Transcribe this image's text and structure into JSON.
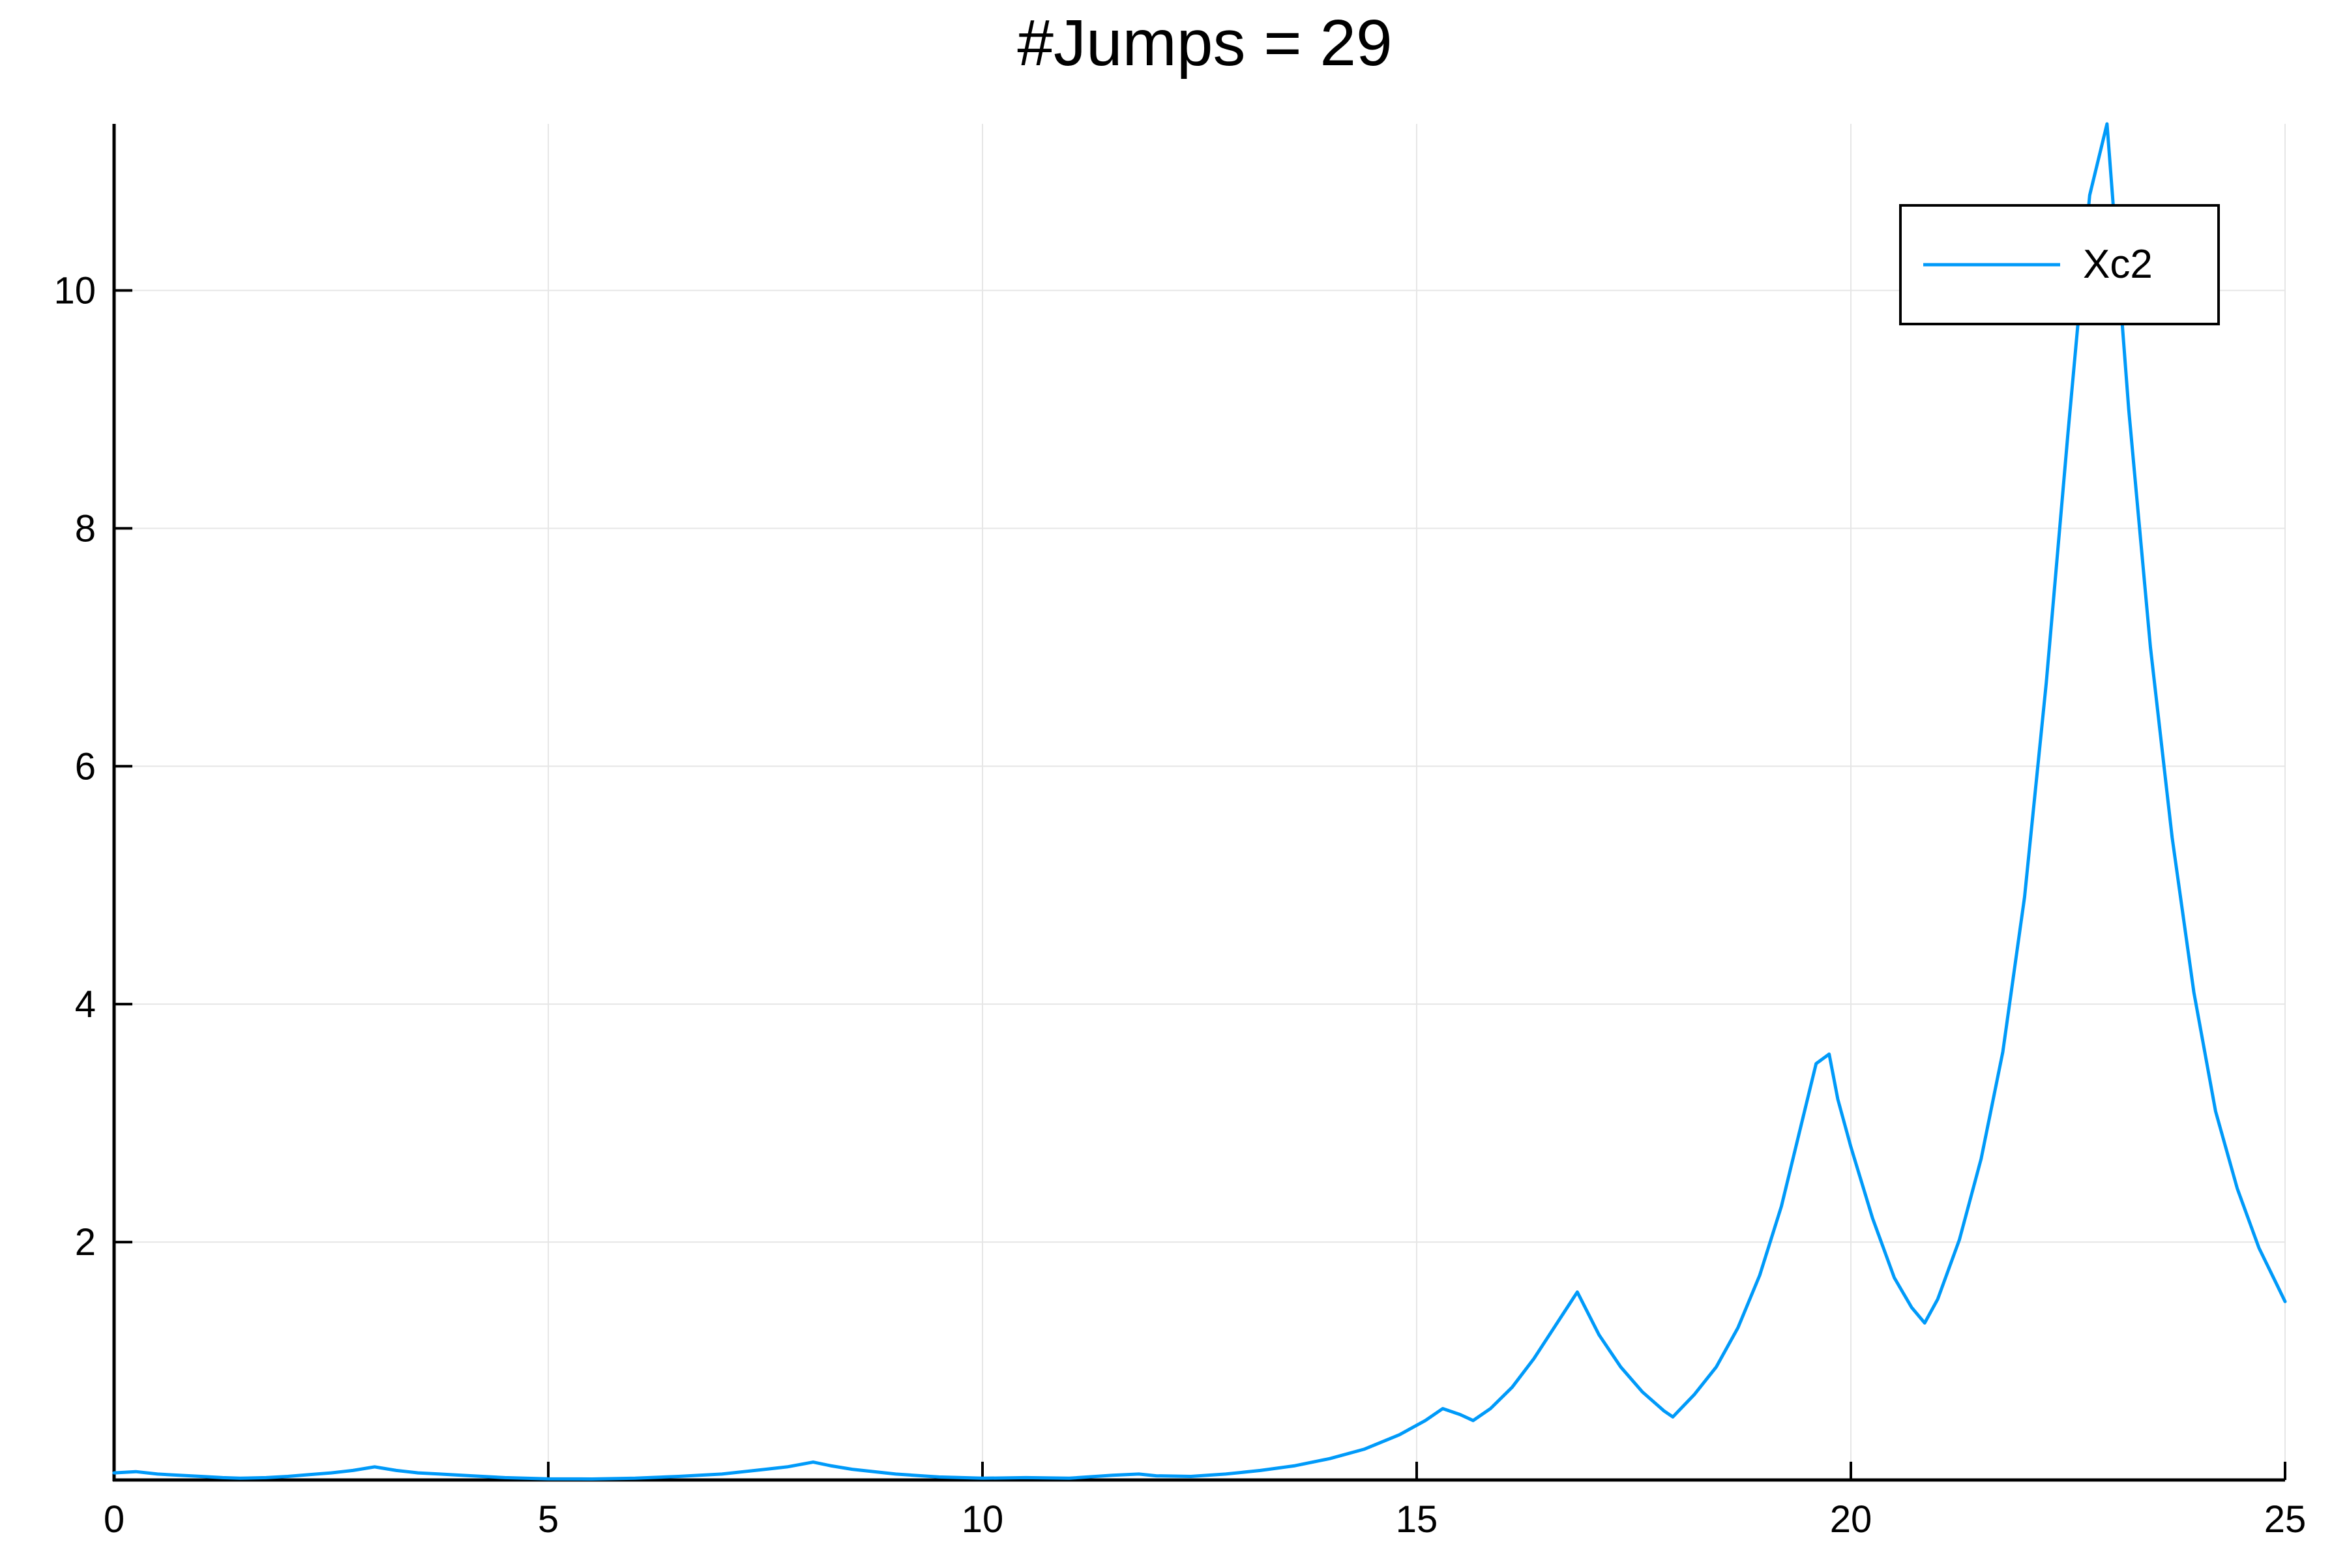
{
  "chart_data": {
    "type": "line",
    "title": "#Jumps = 29",
    "xlabel": "",
    "ylabel": "",
    "xlim": [
      0,
      25
    ],
    "ylim": [
      0,
      11.4
    ],
    "x_ticks": [
      0,
      5,
      10,
      15,
      20,
      25
    ],
    "x_tick_labels": [
      "0",
      "5",
      "10",
      "15",
      "20",
      "25"
    ],
    "y_ticks": [
      2,
      4,
      6,
      8,
      10
    ],
    "y_tick_labels": [
      "2",
      "4",
      "6",
      "8",
      "10"
    ],
    "grid": true,
    "legend_position": "top-right",
    "series": [
      {
        "name": "Xc2",
        "color": "#009af9",
        "x": [
          0,
          0.25,
          0.5,
          0.75,
          1.0,
          1.25,
          1.45,
          1.75,
          2.0,
          2.25,
          2.5,
          2.75,
          3.0,
          3.25,
          3.5,
          3.75,
          4.0,
          4.5,
          5.0,
          5.5,
          6.0,
          6.5,
          7.0,
          7.5,
          7.75,
          8.05,
          8.25,
          8.5,
          9.0,
          9.5,
          10.0,
          10.5,
          11.0,
          11.5,
          11.8,
          12.0,
          12.4,
          12.8,
          13.2,
          13.6,
          14.0,
          14.4,
          14.8,
          15.1,
          15.3,
          15.5,
          15.65,
          15.85,
          16.1,
          16.35,
          16.6,
          16.85,
          17.1,
          17.35,
          17.6,
          17.85,
          17.95,
          18.2,
          18.45,
          18.7,
          18.95,
          19.2,
          19.45,
          19.6,
          19.75,
          19.85,
          20.0,
          20.25,
          20.5,
          20.7,
          20.85,
          21.0,
          21.25,
          21.5,
          21.75,
          22.0,
          22.25,
          22.5,
          22.75,
          22.95,
          23.2,
          23.45,
          23.7,
          23.95,
          24.2,
          24.45,
          24.7,
          24.9,
          25.0
        ],
        "y": [
          0.06,
          0.07,
          0.05,
          0.04,
          0.03,
          0.02,
          0.015,
          0.02,
          0.03,
          0.045,
          0.06,
          0.08,
          0.11,
          0.08,
          0.06,
          0.05,
          0.04,
          0.02,
          0.01,
          0.008,
          0.015,
          0.03,
          0.05,
          0.09,
          0.11,
          0.15,
          0.12,
          0.09,
          0.05,
          0.025,
          0.015,
          0.02,
          0.015,
          0.04,
          0.05,
          0.035,
          0.03,
          0.05,
          0.08,
          0.12,
          0.18,
          0.26,
          0.38,
          0.5,
          0.6,
          0.55,
          0.5,
          0.6,
          0.78,
          1.02,
          1.3,
          1.58,
          1.22,
          0.95,
          0.74,
          0.58,
          0.53,
          0.72,
          0.95,
          1.28,
          1.72,
          2.3,
          3.05,
          3.5,
          3.58,
          3.2,
          2.8,
          2.2,
          1.7,
          1.45,
          1.32,
          1.52,
          2.02,
          2.7,
          3.6,
          4.9,
          6.7,
          8.8,
          10.8,
          11.4,
          9.0,
          7.0,
          5.4,
          4.1,
          3.1,
          2.45,
          1.95,
          1.65,
          1.5
        ]
      }
    ]
  }
}
